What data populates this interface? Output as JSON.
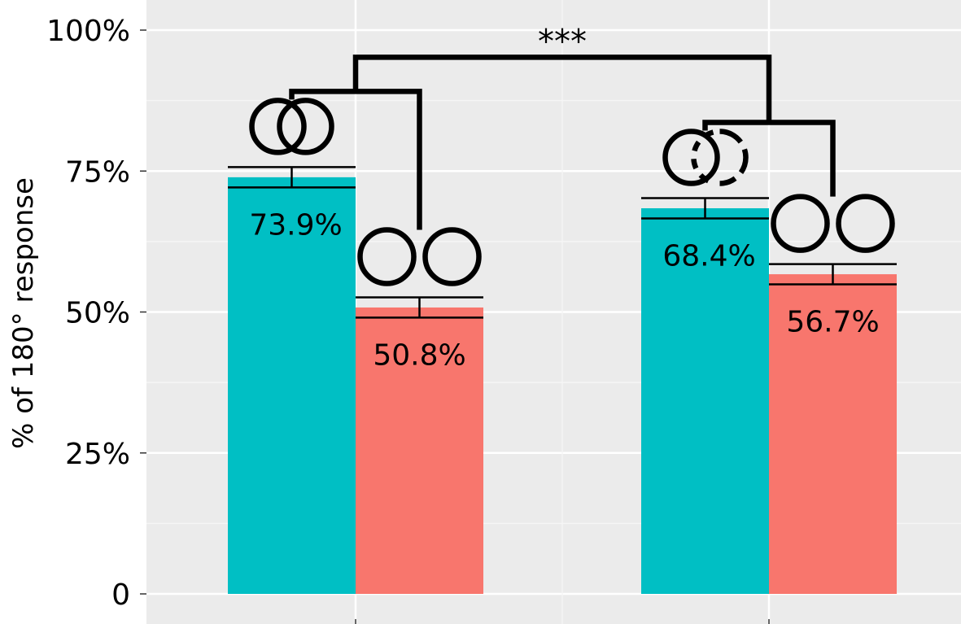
{
  "chart_data": {
    "type": "bar",
    "title": "",
    "xlabel": "",
    "ylabel": "% of 180° response",
    "ylim": [
      0,
      1
    ],
    "yticks": [
      {
        "value": 0,
        "label": "0"
      },
      {
        "value": 0.25,
        "label": "25%"
      },
      {
        "value": 0.5,
        "label": "50%"
      },
      {
        "value": 0.75,
        "label": "75%"
      },
      {
        "value": 1.0,
        "label": "100%"
      }
    ],
    "groups": [
      {
        "name": "group-1",
        "bars": [
          {
            "value": 0.739,
            "error": 0.018,
            "label": "73.9%",
            "color": "#00BFC4",
            "icon": "overlapping-circles-icon"
          },
          {
            "value": 0.508,
            "error": 0.018,
            "label": "50.8%",
            "color": "#F8766D",
            "icon": "separate-circles-icon"
          }
        ]
      },
      {
        "name": "group-2",
        "bars": [
          {
            "value": 0.684,
            "error": 0.018,
            "label": "68.4%",
            "color": "#00BFC4",
            "icon": "occluded-circles-icon"
          },
          {
            "value": 0.567,
            "error": 0.018,
            "label": "56.7%",
            "color": "#F8766D",
            "icon": "separate-circles-icon"
          }
        ]
      }
    ],
    "annotations": [
      {
        "text": "***",
        "type": "significance-bracket",
        "between": [
          "group-1",
          "group-2"
        ]
      }
    ],
    "panel_background": "#EBEBEB",
    "grid": true
  }
}
